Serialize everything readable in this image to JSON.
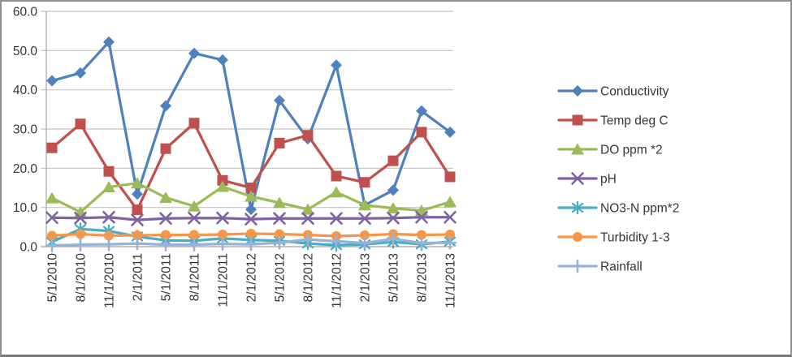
{
  "window": {
    "background": "#ffffff",
    "frame_border_color": "#8f8f8f"
  },
  "chart_data": {
    "type": "line",
    "title": "",
    "categories": [
      "5/1/2010",
      "8/1/2010",
      "11/1/2010",
      "2/1/2011",
      "5/1/2011",
      "8/1/2011",
      "11/1/2011",
      "2/1/2012",
      "5/1/2012",
      "8/1/2012",
      "11/1/2012",
      "2/1/2013",
      "5/1/2013",
      "8/1/2013",
      "11/1/2013"
    ],
    "series": [
      {
        "name": "Conductivity",
        "color": "#4F81BD",
        "marker": "diamond",
        "values": [
          42.3,
          44.3,
          52.2,
          13.4,
          35.9,
          49.3,
          47.6,
          9.5,
          37.3,
          27.5,
          46.3,
          10.6,
          14.4,
          34.6,
          29.2
        ]
      },
      {
        "name": "Temp deg C",
        "color": "#C0504D",
        "marker": "square",
        "values": [
          25.2,
          31.3,
          19.2,
          9.4,
          25.0,
          31.5,
          16.9,
          15.0,
          26.4,
          28.4,
          18.0,
          16.4,
          21.9,
          29.2,
          17.8
        ]
      },
      {
        "name": "DO ppm *2",
        "color": "#9BBB59",
        "marker": "triangle",
        "values": [
          12.4,
          8.8,
          15.2,
          16.2,
          12.5,
          10.3,
          15.3,
          12.8,
          11.2,
          9.5,
          13.9,
          10.6,
          9.8,
          9.2,
          11.4
        ]
      },
      {
        "name": "pH",
        "color": "#8064A2",
        "marker": "x",
        "values": [
          7.4,
          7.3,
          7.5,
          6.8,
          7.2,
          7.3,
          7.3,
          7.0,
          7.2,
          7.2,
          7.2,
          7.2,
          7.3,
          7.5,
          7.5
        ]
      },
      {
        "name": "NO3-N ppm*2",
        "color": "#4BACC6",
        "marker": "star",
        "values": [
          1.2,
          4.5,
          4.0,
          2.6,
          1.6,
          1.5,
          2.1,
          1.7,
          1.5,
          0.8,
          0.4,
          0.6,
          1.2,
          0.6,
          1.3
        ]
      },
      {
        "name": "Turbidity 1-3",
        "color": "#F79646",
        "marker": "circle",
        "values": [
          2.8,
          3.2,
          2.8,
          2.9,
          3.0,
          3.0,
          3.1,
          3.3,
          3.2,
          3.0,
          2.7,
          2.9,
          3.2,
          3.0,
          3.1
        ]
      },
      {
        "name": "Rainfall",
        "color": "#95B3D7",
        "marker": "plus",
        "values": [
          0.3,
          0.5,
          0.6,
          0.8,
          0.5,
          0.5,
          0.7,
          0.6,
          1.0,
          1.8,
          1.4,
          0.9,
          2.0,
          0.9,
          1.0
        ]
      }
    ],
    "y_axis": {
      "min": 0,
      "max": 60,
      "step": 10,
      "tick_labels": [
        "0.0",
        "10.0",
        "20.0",
        "30.0",
        "40.0",
        "50.0",
        "60.0"
      ]
    },
    "x_axis": {
      "label_rotation_deg": 90
    },
    "legend": {
      "position": "right"
    },
    "grid": "horizontal",
    "gridline_color": "#C3C3C3",
    "axis_line_color": "#ABABAB",
    "text_color": "#353535"
  }
}
